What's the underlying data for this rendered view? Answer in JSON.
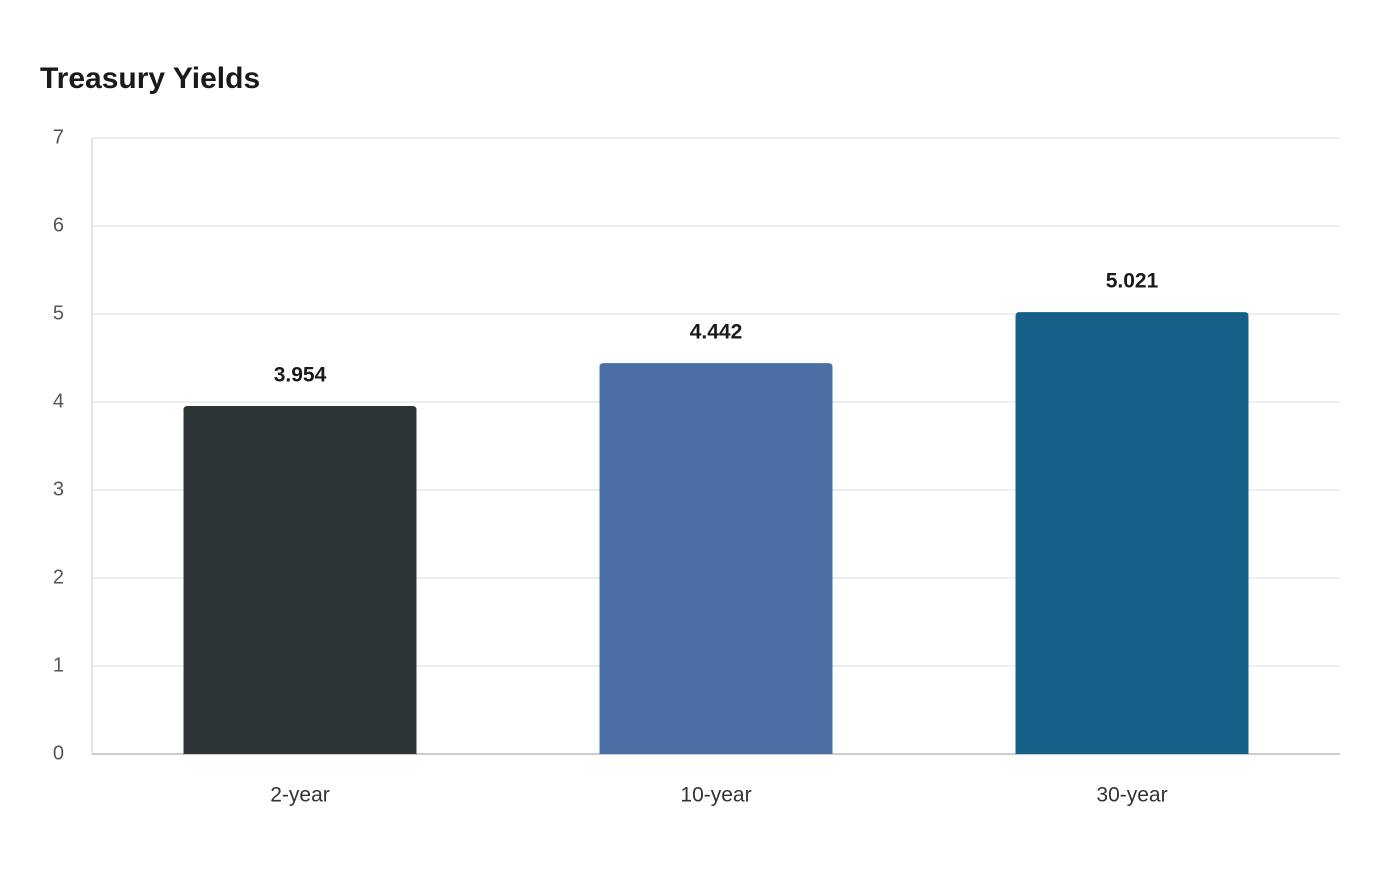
{
  "chart_data": {
    "type": "bar",
    "title": "Treasury Yields",
    "categories": [
      "2-year",
      "10-year",
      "30-year"
    ],
    "values": [
      3.954,
      4.442,
      5.021
    ],
    "colors": [
      "#2d3436",
      "#4a6fa5",
      "#166088"
    ],
    "ylim": [
      0,
      7
    ],
    "yticks": [
      0,
      1,
      2,
      3,
      4,
      5,
      6,
      7
    ],
    "grid": true
  }
}
